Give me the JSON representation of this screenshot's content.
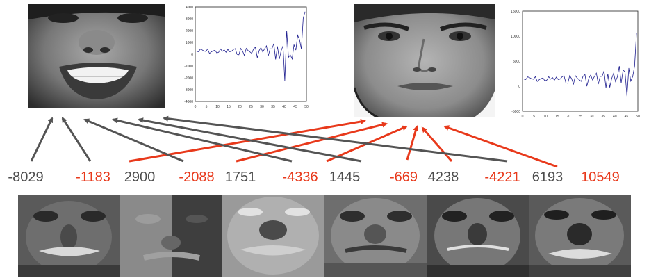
{
  "coefficients": [
    {
      "value": "-8029",
      "color": "#4d4d4d",
      "image": "face-a"
    },
    {
      "value": "-1183",
      "color": "#e8391b",
      "image": "face-b"
    },
    {
      "value": "2900",
      "color": "#4d4d4d",
      "image": "face-a"
    },
    {
      "value": "-2088",
      "color": "#e8391b",
      "image": "face-b"
    },
    {
      "value": "1751",
      "color": "#4d4d4d",
      "image": "face-a"
    },
    {
      "value": "-4336",
      "color": "#e8391b",
      "image": "face-b"
    },
    {
      "value": "1445",
      "color": "#4d4d4d",
      "image": "face-a"
    },
    {
      "value": "-669",
      "color": "#e8391b",
      "image": "face-b"
    },
    {
      "value": "4238",
      "color": "#4d4d4d",
      "image": "face-a"
    },
    {
      "value": "-4221",
      "color": "#e8391b",
      "image": "face-b"
    },
    {
      "value": "6193",
      "color": "#4d4d4d",
      "image": "face-a"
    },
    {
      "value": "10549",
      "color": "#e8391b",
      "image": "face-b"
    }
  ],
  "colors": {
    "face_a_arrow": "#545454",
    "face_b_arrow": "#e8391b",
    "plot_line": "#1f1f8f"
  },
  "plots": [
    {
      "name": "coefficient-plot-a",
      "y_tick_labels": [
        "4000",
        "3000",
        "2000",
        "1000",
        "0",
        "-1000",
        "-2000",
        "-3000",
        "-4000"
      ],
      "x_tick_labels": [
        "0",
        "5",
        "10",
        "15",
        "20",
        "25",
        "30",
        "35",
        "40",
        "45",
        "50"
      ]
    },
    {
      "name": "coefficient-plot-b",
      "y_tick_labels": [
        "15000",
        "10000",
        "5000",
        "0",
        "-5000"
      ],
      "x_tick_labels": [
        "0",
        "5",
        "10",
        "15",
        "20",
        "25",
        "30",
        "35",
        "40",
        "45",
        "50"
      ]
    }
  ],
  "basis_images": [
    {
      "name": "eigenface-1"
    },
    {
      "name": "eigenface-2"
    },
    {
      "name": "eigenface-3"
    },
    {
      "name": "eigenface-4"
    },
    {
      "name": "eigenface-5"
    },
    {
      "name": "eigenface-6"
    }
  ]
}
